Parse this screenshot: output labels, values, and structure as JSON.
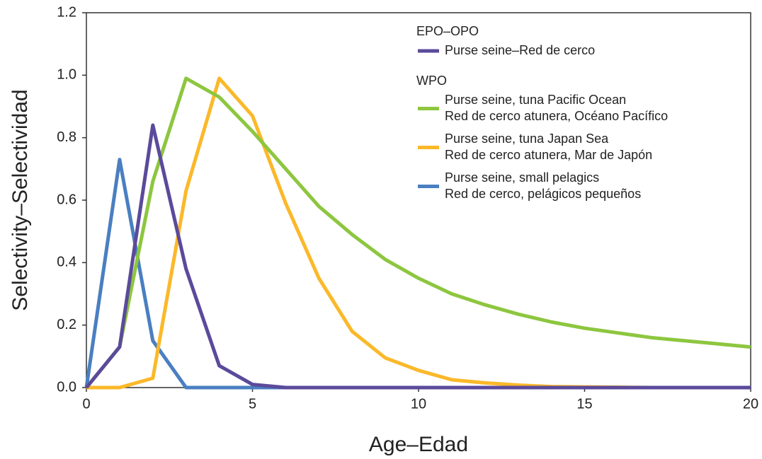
{
  "chart_data": {
    "type": "line",
    "x_label": "Age–Edad",
    "y_label": "Selectivity–Selectividad",
    "x": [
      0,
      1,
      2,
      3,
      4,
      5,
      6,
      7,
      8,
      9,
      10,
      11,
      12,
      13,
      14,
      15,
      16,
      17,
      18,
      19,
      20
    ],
    "xlim": [
      0,
      20
    ],
    "xticks": [
      0,
      5,
      10,
      15,
      20
    ],
    "ylim": [
      0,
      1.2
    ],
    "yticks": [
      {
        "value": 0,
        "label": "0.0"
      },
      0.2,
      0.4,
      0.6,
      0.8,
      {
        "value": 1,
        "label": "1.0"
      },
      1.2
    ],
    "series_groups": [
      {
        "title": "EPO–OPO",
        "series": [
          {
            "name": "Purse seine–Red de cerco",
            "color": "#5b4a9b",
            "values": [
              0,
              0.13,
              0.84,
              0.38,
              0.07,
              0.01,
              0,
              0,
              0,
              0,
              0,
              0,
              0,
              0,
              0,
              0,
              0,
              0,
              0,
              0,
              0
            ]
          }
        ]
      },
      {
        "title": "WPO",
        "series": [
          {
            "name": "Purse seine, tuna Pacific Ocean",
            "name_es": "Red de cerco atunera, Océano Pacífico",
            "color": "#8dc63f",
            "values": [
              0,
              0.13,
              0.66,
              0.99,
              0.93,
              0.82,
              0.7,
              0.58,
              0.49,
              0.41,
              0.35,
              0.3,
              0.265,
              0.235,
              0.21,
              0.19,
              0.175,
              0.16,
              0.15,
              0.14,
              0.13
            ]
          },
          {
            "name": "Purse seine, tuna Japan Sea",
            "name_es": "Red de cerco atunera, Mar de Japón",
            "color": "#fbb829",
            "values": [
              0,
              0,
              0.03,
              0.63,
              0.99,
              0.87,
              0.59,
              0.35,
              0.18,
              0.095,
              0.055,
              0.025,
              0.015,
              0.008,
              0.003,
              0.002,
              0.001,
              0,
              0,
              0,
              0
            ]
          },
          {
            "name": "Purse seine, small pelagics",
            "name_es": "Red de cerco, pelágicos pequeños",
            "color": "#4a7fc1",
            "values": [
              0,
              0.73,
              0.15,
              0,
              0,
              0,
              0,
              0,
              0,
              0,
              0,
              0,
              0,
              0,
              0,
              0,
              0,
              0,
              0,
              0,
              0
            ]
          }
        ]
      }
    ]
  }
}
